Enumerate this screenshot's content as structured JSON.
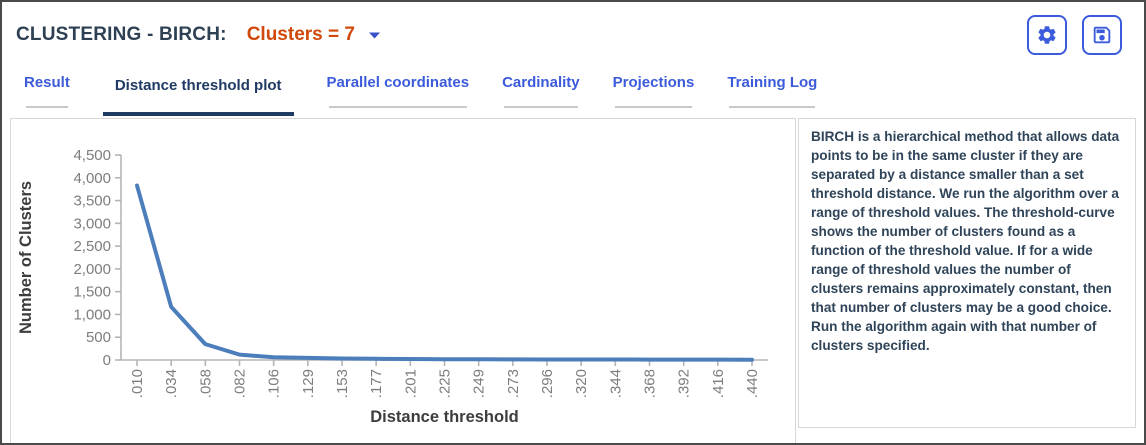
{
  "header": {
    "title": "CLUSTERING - BIRCH:",
    "clusters_dropdown": "Clusters = 7"
  },
  "toolbar": {
    "settings_icon": "gear-icon",
    "save_icon": "save-icon"
  },
  "tabs": [
    {
      "label": "Result",
      "active": false
    },
    {
      "label": "Distance threshold plot",
      "active": true
    },
    {
      "label": "Parallel coordinates",
      "active": false
    },
    {
      "label": "Cardinality",
      "active": false
    },
    {
      "label": "Projections",
      "active": false
    },
    {
      "label": "Training Log",
      "active": false
    }
  ],
  "chart_data": {
    "type": "line",
    "title": "",
    "xlabel": "Distance threshold",
    "ylabel": "Number of Clusters",
    "x_tick_labels": [
      ".010",
      ".034",
      ".058",
      ".082",
      ".106",
      ".129",
      ".153",
      ".177",
      ".201",
      ".225",
      ".249",
      ".273",
      ".296",
      ".320",
      ".344",
      ".368",
      ".392",
      ".416",
      ".440"
    ],
    "values": [
      3830,
      1166,
      350,
      118,
      60,
      45,
      33,
      26,
      21,
      18,
      15,
      13,
      12,
      11,
      10,
      9,
      8,
      8,
      7
    ],
    "y_tick_labels": [
      "4,500",
      "4,000",
      "3,500",
      "3,000",
      "2,500",
      "2,000",
      "1,500",
      "1,000",
      "500",
      "0"
    ],
    "ylim": [
      0,
      4500
    ],
    "grid": false,
    "legend": "none",
    "line_color": "#4d7ebc"
  },
  "info_panel": {
    "text": "BIRCH is a hierarchical method that allows data points to be in the same cluster if they are separated by a distance smaller than a set threshold distance. We run the algorithm over a range of threshold values. The threshold-curve shows the number of clusters found as a function of the threshold value. If for a wide range of threshold values the number of clusters remains approximately constant, then that number of clusters may be a good choice. Run the algorithm again with that number of clusters specified."
  },
  "colors": {
    "title": "#2e4154",
    "clusters_value": "#d0490b",
    "tab_inactive": "#3b5bdb",
    "tab_active": "#1f3a63",
    "line": "#4d7ebc",
    "axis": "#b5b5b5",
    "tick_text": "#7d7d7d",
    "axis_title": "#3d3d3d"
  }
}
